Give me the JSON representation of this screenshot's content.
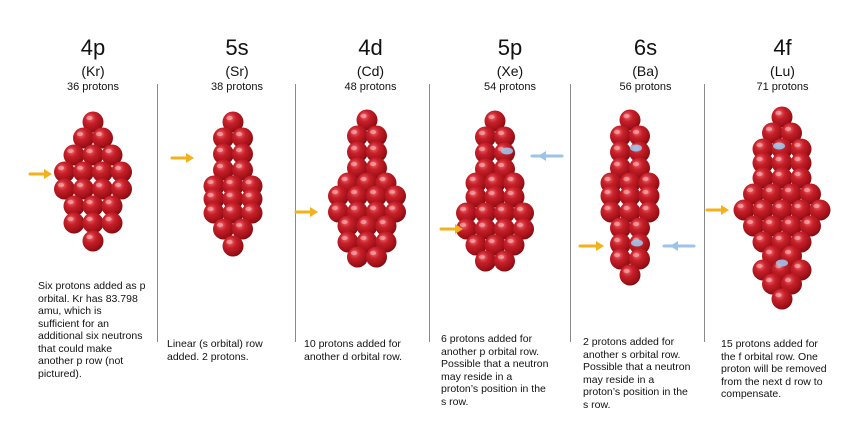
{
  "colors": {
    "proton": "#b3141c",
    "arrow_yellow": "#f3b21b",
    "arrow_blue": "#9cc3ea",
    "divider": "#8a8a8a"
  },
  "columns": [
    {
      "shell": "4p",
      "element": "(Kr)",
      "protons": "36 protons",
      "note": [
        "Six protons added as p",
        "orbital. Kr has 83.798",
        "amu, which is",
        "sufficient for an",
        "additional six neutrons",
        "that could make",
        "another p row (not",
        "pictured)."
      ]
    },
    {
      "shell": "5s",
      "element": "(Sr)",
      "protons": "38 protons",
      "note": [
        "Linear (s orbital) row",
        "added. 2 protons."
      ]
    },
    {
      "shell": "4d",
      "element": "(Cd)",
      "protons": "48 protons",
      "note": [
        "10 protons added for",
        "another d orbital row."
      ]
    },
    {
      "shell": "5p",
      "element": "(Xe)",
      "protons": "54 protons",
      "note": [
        "6 protons added for",
        "another p orbital row.",
        "Possible that a neutron",
        "may reside in a",
        "proton’s position in the",
        "s row."
      ]
    },
    {
      "shell": "6s",
      "element": "(Ba)",
      "protons": "56 protons",
      "note": [
        "2 protons added for",
        "another s orbital row.",
        "Possible that a neutron",
        "may reside in a",
        "proton’s position in the",
        "s row."
      ]
    },
    {
      "shell": "4f",
      "element": "(Lu)",
      "protons": "71 protons",
      "note": [
        "15 protons added for",
        "the f orbital row.  One",
        "proton will be removed",
        "from the next d row to",
        "compensate."
      ]
    }
  ]
}
